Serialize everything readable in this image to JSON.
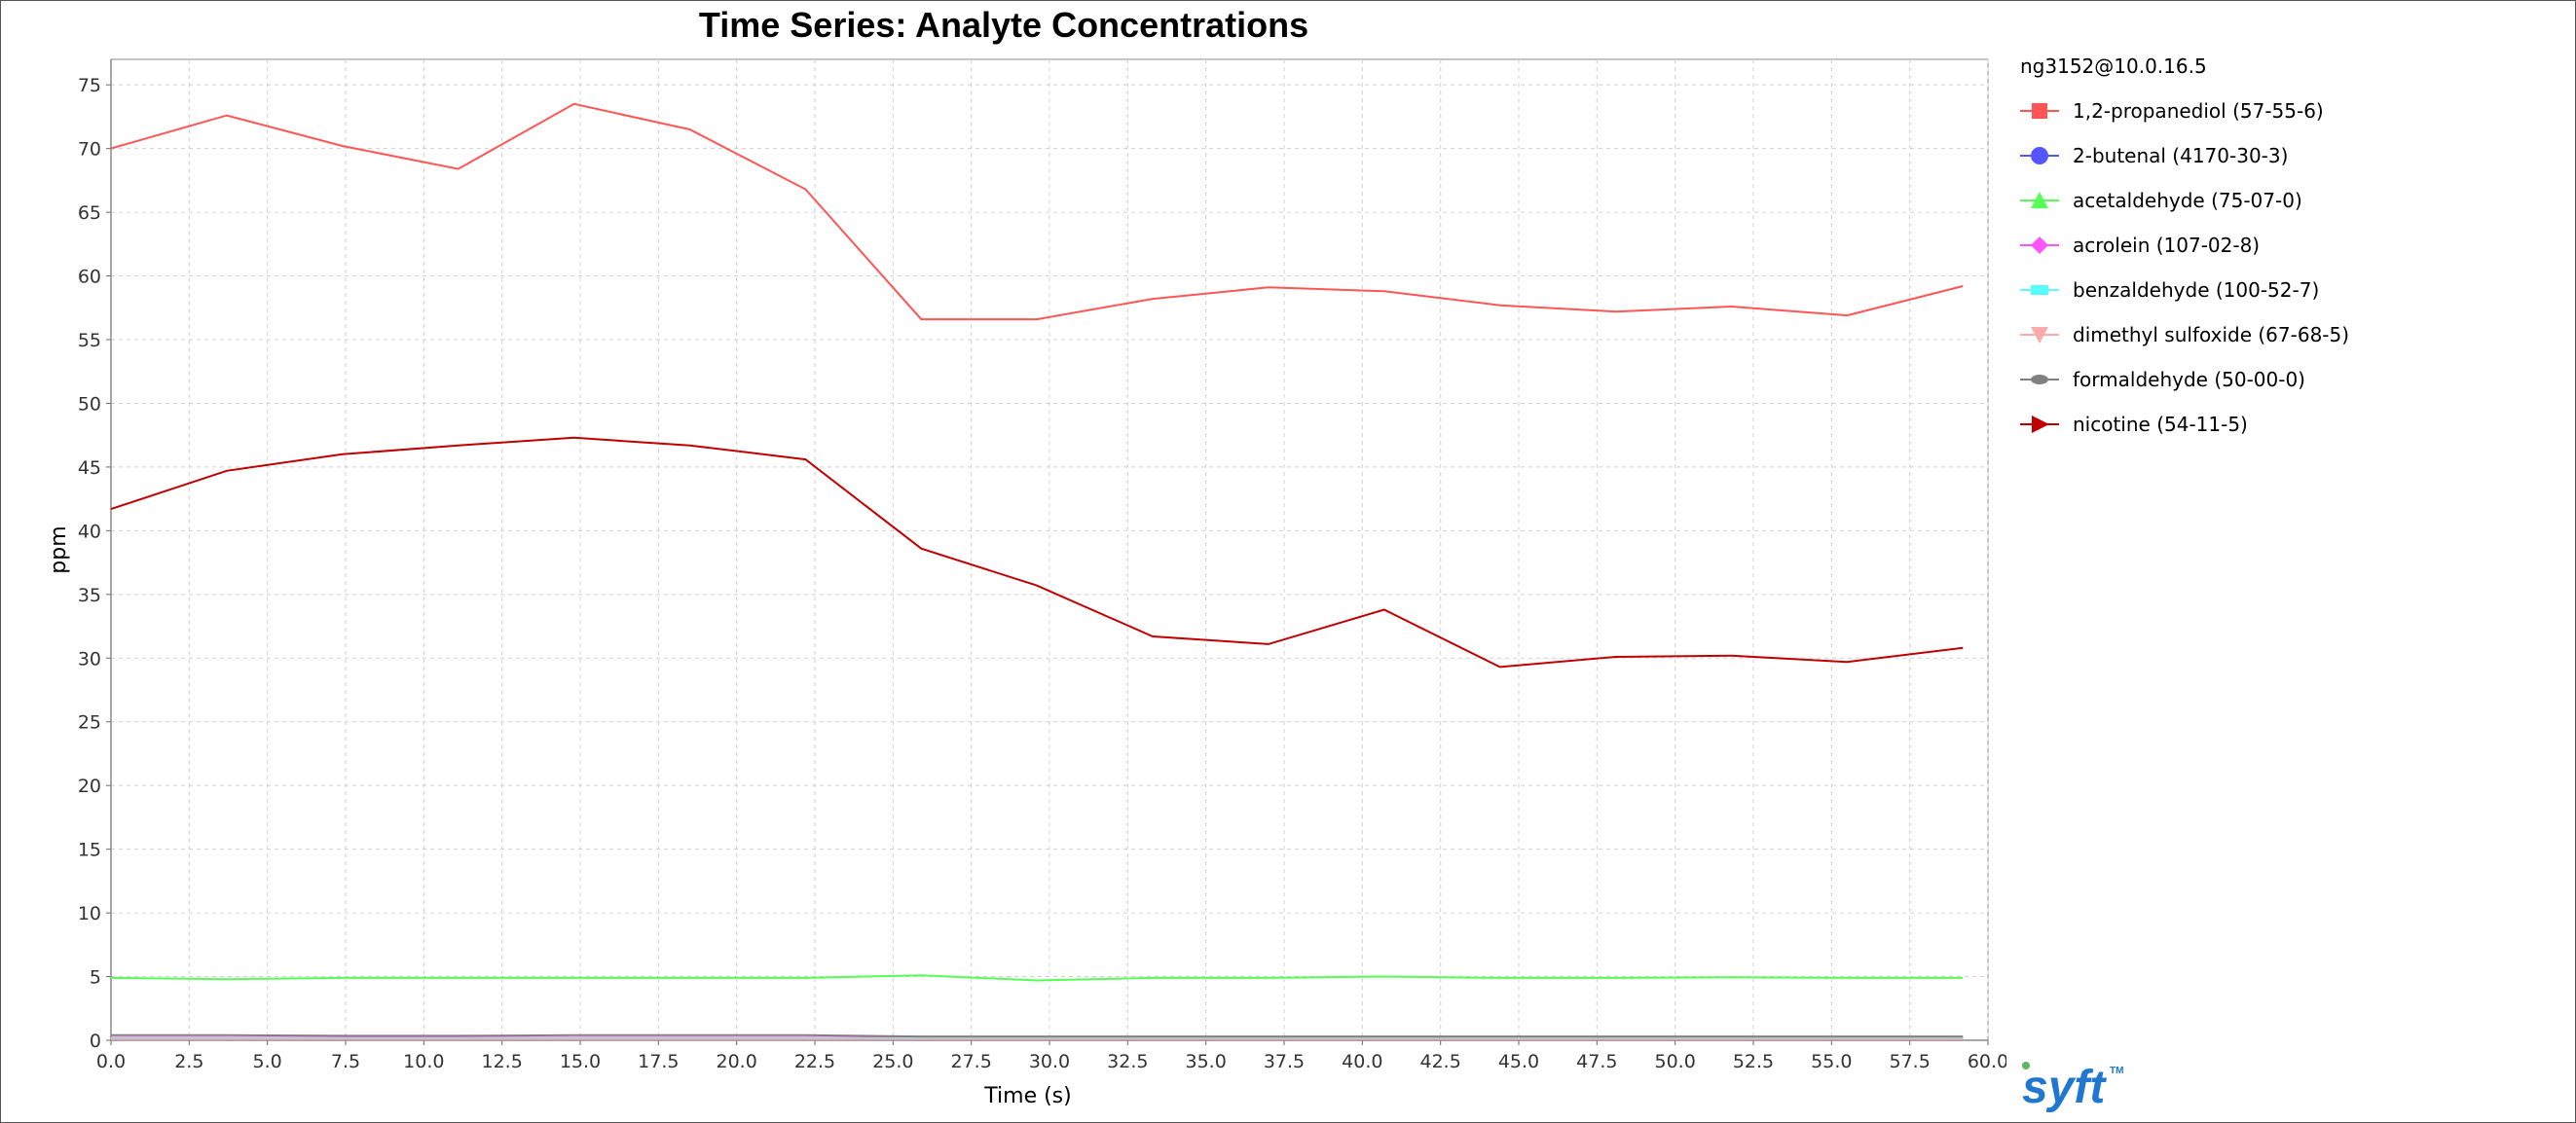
{
  "chart_data": {
    "type": "line",
    "title": "Time Series: Analyte Concentrations",
    "xlabel": "Time (s)",
    "ylabel": "ppm",
    "xlim": [
      0,
      60
    ],
    "ylim": [
      0,
      77
    ],
    "x_ticks": [
      "0.0",
      "2.5",
      "5.0",
      "7.5",
      "10.0",
      "12.5",
      "15.0",
      "17.5",
      "20.0",
      "22.5",
      "25.0",
      "27.5",
      "30.0",
      "32.5",
      "35.0",
      "37.5",
      "40.0",
      "42.5",
      "45.0",
      "47.5",
      "50.0",
      "52.5",
      "55.0",
      "57.5",
      "60.0"
    ],
    "y_ticks": [
      "0",
      "5",
      "10",
      "15",
      "20",
      "25",
      "30",
      "35",
      "40",
      "45",
      "50",
      "55",
      "60",
      "65",
      "70",
      "75"
    ],
    "grid": true,
    "legend_placement": "right",
    "legend_title": "ng3152@10.0.16.5",
    "x": [
      0,
      3.7,
      7.4,
      11.1,
      14.8,
      18.5,
      22.2,
      25.9,
      29.6,
      33.3,
      37.0,
      40.7,
      44.4,
      48.1,
      51.8,
      55.5,
      59.2
    ],
    "series": [
      {
        "name": "1,2-propanediol (57-55-6)",
        "color": "#ff5555",
        "marker": "square",
        "values": [
          70.0,
          72.6,
          70.2,
          68.4,
          73.5,
          71.5,
          66.8,
          56.6,
          56.6,
          58.2,
          59.1,
          58.8,
          57.7,
          57.2,
          57.6,
          56.9,
          59.2
        ]
      },
      {
        "name": "2-butenal (4170-30-3)",
        "color": "#5555ff",
        "marker": "circle",
        "values": [
          0.1,
          0.1,
          0.1,
          0.1,
          0.1,
          0.1,
          0.1,
          0.1,
          0.1,
          0.1,
          0.1,
          0.1,
          0.1,
          0.1,
          0.1,
          0.1,
          0.1
        ]
      },
      {
        "name": "acetaldehyde (75-07-0)",
        "color": "#55ff55",
        "marker": "triangle-up",
        "values": [
          4.9,
          4.8,
          4.9,
          4.9,
          4.9,
          4.9,
          4.9,
          5.1,
          4.7,
          4.9,
          4.9,
          5.0,
          4.9,
          4.9,
          4.95,
          4.9,
          4.9
        ]
      },
      {
        "name": "acrolein (107-02-8)",
        "color": "#ff55ff",
        "marker": "diamond",
        "values": [
          0.2,
          0.2,
          0.2,
          0.2,
          0.2,
          0.2,
          0.2,
          0.2,
          0.2,
          0.2,
          0.2,
          0.2,
          0.2,
          0.2,
          0.2,
          0.2,
          0.2
        ]
      },
      {
        "name": "benzaldehyde (100-52-7)",
        "color": "#55ffff",
        "marker": "rect",
        "values": [
          0.15,
          0.15,
          0.15,
          0.15,
          0.15,
          0.15,
          0.15,
          0.15,
          0.15,
          0.15,
          0.15,
          0.15,
          0.15,
          0.15,
          0.15,
          0.15,
          0.15
        ]
      },
      {
        "name": "dimethyl sulfoxide (67-68-5)",
        "color": "#ffaaaa",
        "marker": "triangle-down",
        "values": [
          0.1,
          0.1,
          0.1,
          0.1,
          0.1,
          0.1,
          0.1,
          0.1,
          0.1,
          0.1,
          0.1,
          0.1,
          0.1,
          0.1,
          0.1,
          0.1,
          0.1
        ]
      },
      {
        "name": "formaldehyde (50-00-0)",
        "color": "#808080",
        "marker": "ellipse",
        "values": [
          0.4,
          0.4,
          0.35,
          0.35,
          0.4,
          0.4,
          0.4,
          0.3,
          0.3,
          0.3,
          0.3,
          0.3,
          0.3,
          0.3,
          0.3,
          0.3,
          0.3
        ]
      },
      {
        "name": "nicotine (54-11-5)",
        "color": "#c00000",
        "marker": "triangle-right",
        "values": [
          41.7,
          44.7,
          46.0,
          46.7,
          47.3,
          46.7,
          45.6,
          38.6,
          35.7,
          31.7,
          31.1,
          33.8,
          29.3,
          30.1,
          30.2,
          29.7,
          30.8
        ]
      }
    ]
  },
  "logo": {
    "text": "syft",
    "tm": "TM",
    "color": "#1f77d0",
    "dot_color": "#5cb85c"
  }
}
